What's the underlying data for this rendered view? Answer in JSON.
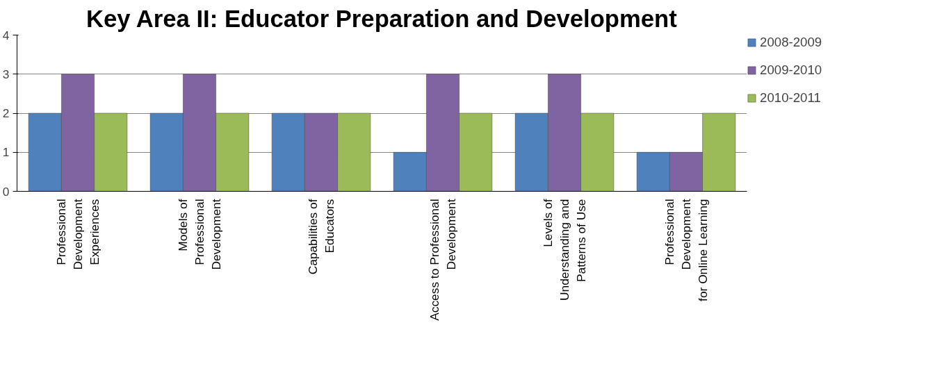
{
  "chart_data": {
    "type": "bar",
    "title": "Key Area II: Educator Preparation and Development",
    "categories": [
      "Professional\nDevelopment\nExperiences",
      "Models of\nProfessional\nDevelopment",
      "Capabilities of\nEducators",
      "Access to Professional\nDevelopment",
      "Levels of\nUnderstanding and\nPatterns of Use",
      "Professional\nDevelopment\nfor Online Learning"
    ],
    "series": [
      {
        "name": "2008-2009",
        "color": "#4f81bd",
        "values": [
          2,
          2,
          2,
          1,
          2,
          1
        ]
      },
      {
        "name": "2009-2010",
        "color": "#8064a2",
        "values": [
          3,
          3,
          2,
          3,
          3,
          1
        ]
      },
      {
        "name": "2010-2011",
        "color": "#9bbb59",
        "values": [
          2,
          2,
          2,
          2,
          2,
          2
        ]
      }
    ],
    "ylim": [
      0,
      4
    ],
    "yticks": [
      0,
      1,
      2,
      3,
      4
    ],
    "grid": "y",
    "legend": "right"
  }
}
